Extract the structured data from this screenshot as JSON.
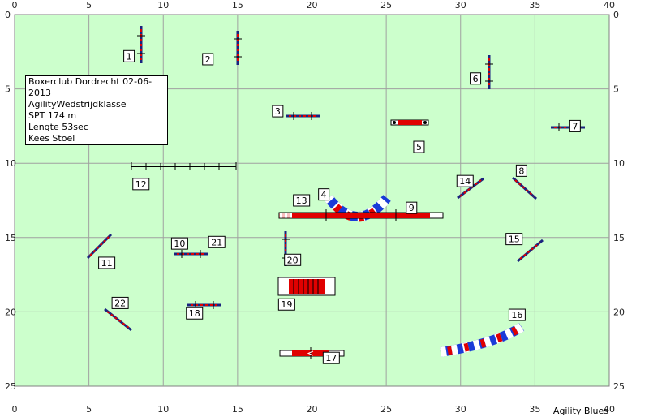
{
  "course": {
    "info_lines": [
      "Boxerclub Dordrecht 02-06-2013",
      "AgilityWedstrijdklasse",
      "SPT 174 m",
      "Lengte 53sec",
      "Kees Stoel"
    ],
    "footer": "Agility Blues",
    "x_ticks": [
      "0",
      "5",
      "10",
      "15",
      "20",
      "25",
      "30",
      "35",
      "40"
    ],
    "y_ticks": [
      "0",
      "5",
      "10",
      "15",
      "20",
      "25"
    ],
    "colors": {
      "field": "#ccffcc",
      "grid": "#a0a0a0",
      "pole": "#1a237e",
      "bar_red": "#e00000",
      "blue": "#1a3bd8"
    },
    "obstacle_numbers": [
      {
        "n": "1",
        "x": 7.7,
        "y": 2.8
      },
      {
        "n": "2",
        "x": 13.0,
        "y": 3.0
      },
      {
        "n": "3",
        "x": 17.7,
        "y": 6.5
      },
      {
        "n": "4",
        "x": 20.8,
        "y": 12.1
      },
      {
        "n": "5",
        "x": 27.2,
        "y": 8.9
      },
      {
        "n": "6",
        "x": 31.0,
        "y": 4.3
      },
      {
        "n": "7",
        "x": 37.7,
        "y": 7.5
      },
      {
        "n": "8",
        "x": 34.1,
        "y": 10.5
      },
      {
        "n": "9",
        "x": 26.7,
        "y": 13.0
      },
      {
        "n": "10",
        "x": 11.1,
        "y": 15.4
      },
      {
        "n": "11",
        "x": 6.2,
        "y": 16.7
      },
      {
        "n": "12",
        "x": 8.5,
        "y": 11.4
      },
      {
        "n": "13",
        "x": 19.3,
        "y": 12.5
      },
      {
        "n": "14",
        "x": 30.3,
        "y": 11.2
      },
      {
        "n": "15",
        "x": 33.6,
        "y": 15.1
      },
      {
        "n": "16",
        "x": 33.8,
        "y": 20.2
      },
      {
        "n": "17",
        "x": 21.3,
        "y": 23.1
      },
      {
        "n": "18",
        "x": 12.1,
        "y": 20.1
      },
      {
        "n": "19",
        "x": 18.3,
        "y": 19.5
      },
      {
        "n": "20",
        "x": 18.7,
        "y": 16.5
      },
      {
        "n": "21",
        "x": 13.6,
        "y": 15.3
      },
      {
        "n": "22",
        "x": 7.1,
        "y": 19.4
      }
    ]
  }
}
